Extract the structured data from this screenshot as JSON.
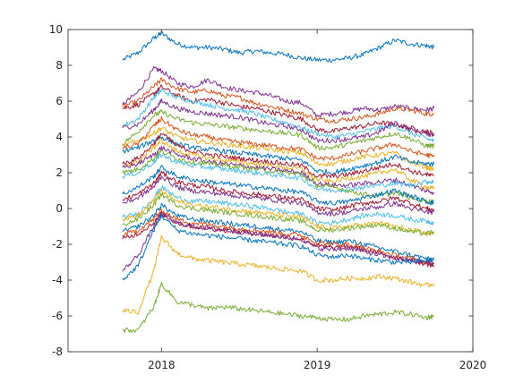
{
  "chart_data": {
    "type": "line",
    "title": "",
    "xlabel": "",
    "ylabel": "",
    "xlim": [
      2017.4,
      2020.0
    ],
    "ylim": [
      -8,
      10
    ],
    "grid": false,
    "legend": "none",
    "x_ticks": [
      2018,
      2019,
      2020
    ],
    "y_ticks": [
      -8,
      -6,
      -4,
      -2,
      0,
      2,
      4,
      6,
      8,
      10
    ],
    "x_tick_labels": [
      "2018",
      "2019",
      "2020"
    ],
    "y_tick_labels": [
      "-8",
      "-6",
      "-4",
      "-2",
      "0",
      "2",
      "4",
      "6",
      "8",
      "10"
    ],
    "x": [
      2017.75,
      2017.85,
      2017.95,
      2018.0,
      2018.1,
      2018.2,
      2018.3,
      2018.4,
      2018.5,
      2018.6,
      2018.7,
      2018.8,
      2018.9,
      2019.0,
      2019.1,
      2019.2,
      2019.3,
      2019.4,
      2019.5,
      2019.6,
      2019.7,
      2019.75
    ],
    "series": [
      {
        "color": "#0072BD",
        "values": [
          8.3,
          8.7,
          9.5,
          9.8,
          9.2,
          9.0,
          9.0,
          8.9,
          8.7,
          8.8,
          8.7,
          8.6,
          8.4,
          8.3,
          8.3,
          8.4,
          8.6,
          9.0,
          9.4,
          9.2,
          9.1,
          9.0
        ]
      },
      {
        "color": "#7E2F8E",
        "values": [
          5.8,
          6.5,
          7.8,
          7.7,
          7.0,
          6.8,
          7.2,
          6.8,
          6.6,
          6.5,
          6.3,
          6.0,
          5.9,
          5.2,
          5.3,
          5.4,
          5.6,
          5.5,
          5.7,
          5.6,
          5.5,
          5.6
        ]
      },
      {
        "color": "#D95319",
        "values": [
          5.7,
          6.0,
          6.8,
          7.2,
          6.7,
          6.5,
          6.6,
          6.3,
          6.2,
          5.9,
          5.7,
          5.5,
          5.3,
          5.0,
          4.9,
          5.0,
          5.1,
          5.3,
          5.6,
          5.5,
          5.3,
          5.3
        ]
      },
      {
        "color": "#A2142F",
        "values": [
          5.6,
          5.8,
          6.4,
          6.8,
          6.3,
          6.0,
          6.1,
          5.9,
          5.7,
          5.6,
          5.4,
          5.2,
          5.0,
          4.4,
          4.3,
          4.5,
          4.6,
          4.8,
          4.7,
          4.5,
          4.3,
          4.2
        ]
      },
      {
        "color": "#4DBEEE",
        "values": [
          4.6,
          5.0,
          6.2,
          6.6,
          6.2,
          6.0,
          5.8,
          5.6,
          5.5,
          5.3,
          5.0,
          4.8,
          4.5,
          4.2,
          4.0,
          4.1,
          4.3,
          4.5,
          4.6,
          4.2,
          3.9,
          3.8
        ]
      },
      {
        "color": "#7E2F8E",
        "values": [
          4.5,
          4.7,
          5.5,
          6.0,
          5.6,
          5.4,
          5.3,
          5.2,
          5.1,
          4.9,
          4.7,
          4.6,
          4.4,
          3.8,
          3.8,
          3.9,
          4.0,
          4.3,
          4.8,
          4.4,
          4.2,
          4.1
        ]
      },
      {
        "color": "#77AC30",
        "values": [
          3.6,
          4.3,
          5.2,
          5.4,
          5.0,
          4.8,
          4.7,
          4.6,
          4.5,
          4.4,
          4.3,
          4.2,
          4.1,
          3.4,
          3.4,
          3.6,
          3.8,
          4.0,
          4.2,
          3.9,
          3.5,
          3.5
        ]
      },
      {
        "color": "#EDB120",
        "values": [
          3.5,
          3.8,
          4.2,
          4.5,
          4.0,
          3.8,
          3.7,
          3.6,
          3.5,
          3.4,
          3.3,
          3.2,
          3.1,
          2.5,
          2.5,
          2.7,
          2.9,
          3.0,
          3.1,
          2.6,
          2.3,
          2.2
        ]
      },
      {
        "color": "#D95319",
        "values": [
          3.4,
          3.6,
          4.6,
          5.0,
          4.4,
          4.1,
          4.0,
          3.8,
          3.7,
          3.6,
          3.5,
          3.4,
          3.3,
          2.8,
          2.8,
          3.0,
          3.2,
          3.4,
          3.6,
          3.2,
          3.0,
          2.9
        ]
      },
      {
        "color": "#0072BD",
        "values": [
          3.2,
          3.4,
          3.8,
          4.0,
          3.6,
          3.4,
          3.3,
          3.2,
          3.1,
          3.0,
          2.9,
          2.8,
          2.7,
          2.1,
          2.0,
          2.2,
          2.4,
          2.6,
          2.9,
          2.6,
          2.5,
          2.5
        ]
      },
      {
        "color": "#A2142F",
        "values": [
          2.5,
          2.8,
          3.6,
          4.2,
          3.5,
          3.2,
          3.0,
          2.9,
          2.8,
          2.7,
          2.6,
          2.5,
          2.4,
          1.8,
          1.8,
          1.9,
          2.1,
          2.3,
          2.5,
          2.1,
          1.9,
          1.8
        ]
      },
      {
        "color": "#EDB120",
        "values": [
          2.4,
          2.6,
          3.4,
          3.8,
          3.2,
          3.0,
          2.8,
          2.7,
          2.6,
          2.5,
          2.4,
          2.3,
          2.2,
          1.6,
          1.5,
          1.7,
          1.8,
          2.0,
          2.2,
          1.6,
          1.2,
          1.1
        ]
      },
      {
        "color": "#7E2F8E",
        "values": [
          2.3,
          2.5,
          3.0,
          3.4,
          3.0,
          2.8,
          2.6,
          2.5,
          2.4,
          2.3,
          2.2,
          2.1,
          2.0,
          1.4,
          1.3,
          1.3,
          1.4,
          1.5,
          1.6,
          1.3,
          1.0,
          0.9
        ]
      },
      {
        "color": "#77AC30",
        "values": [
          2.0,
          2.2,
          2.8,
          3.2,
          2.8,
          2.6,
          2.5,
          2.4,
          2.3,
          2.2,
          2.1,
          2.0,
          1.9,
          1.3,
          1.2,
          1.0,
          0.8,
          0.7,
          0.9,
          0.6,
          0.4,
          0.4
        ]
      },
      {
        "color": "#4DBEEE",
        "values": [
          1.8,
          2.0,
          2.6,
          3.0,
          2.6,
          2.4,
          2.3,
          2.2,
          2.1,
          2.0,
          1.9,
          1.8,
          1.7,
          1.1,
          1.0,
          1.1,
          1.2,
          1.3,
          1.4,
          1.3,
          1.5,
          1.5
        ]
      },
      {
        "color": "#0072BD",
        "values": [
          0.8,
          1.2,
          1.8,
          2.3,
          1.8,
          1.6,
          1.5,
          1.4,
          1.3,
          1.2,
          1.1,
          1.0,
          0.9,
          0.4,
          0.3,
          0.4,
          0.6,
          0.8,
          1.0,
          0.7,
          0.4,
          0.3
        ]
      },
      {
        "color": "#A2142F",
        "values": [
          0.5,
          0.8,
          1.4,
          2.0,
          1.5,
          1.3,
          1.2,
          1.0,
          0.9,
          0.8,
          0.7,
          0.6,
          0.5,
          0.0,
          -0.1,
          0.1,
          0.3,
          0.4,
          0.6,
          0.3,
          0.0,
          -0.1
        ]
      },
      {
        "color": "#7E2F8E",
        "values": [
          0.3,
          0.6,
          1.2,
          1.8,
          1.2,
          1.0,
          0.9,
          0.8,
          0.7,
          0.6,
          0.5,
          0.4,
          0.3,
          -0.2,
          -0.3,
          -0.2,
          0.0,
          0.1,
          0.3,
          0.0,
          -0.2,
          -0.2
        ]
      },
      {
        "color": "#4DBEEE",
        "values": [
          -0.5,
          -0.3,
          0.6,
          1.2,
          0.6,
          0.4,
          0.4,
          0.3,
          0.2,
          0.1,
          0.0,
          -0.2,
          -0.3,
          -0.8,
          -0.8,
          -0.6,
          -0.4,
          -0.3,
          -0.4,
          -0.6,
          -0.7,
          -0.8
        ]
      },
      {
        "color": "#EDB120",
        "values": [
          -0.6,
          -0.4,
          0.4,
          1.0,
          0.4,
          0.2,
          0.1,
          0.0,
          -0.1,
          -0.2,
          -0.3,
          -0.4,
          -0.5,
          -1.0,
          -1.1,
          -1.0,
          -0.9,
          -0.8,
          -1.0,
          -1.2,
          -1.4,
          -1.4
        ]
      },
      {
        "color": "#77AC30",
        "values": [
          -0.9,
          -0.6,
          0.2,
          0.8,
          0.2,
          0.0,
          -0.1,
          -0.2,
          -0.3,
          -0.4,
          -0.5,
          -0.6,
          -0.7,
          -1.2,
          -1.2,
          -1.1,
          -1.0,
          -0.9,
          -1.1,
          -1.3,
          -1.4,
          -1.3
        ]
      },
      {
        "color": "#0072BD",
        "values": [
          -1.3,
          -1.0,
          -0.4,
          0.2,
          -0.4,
          -0.6,
          -0.7,
          -0.8,
          -0.9,
          -1.0,
          -1.1,
          -1.2,
          -1.3,
          -1.8,
          -1.9,
          -1.8,
          -2.0,
          -2.2,
          -2.4,
          -2.6,
          -2.8,
          -2.9
        ]
      },
      {
        "color": "#D95319",
        "values": [
          -1.5,
          -1.2,
          -0.6,
          -0.1,
          -0.6,
          -0.8,
          -0.9,
          -1.0,
          -1.1,
          -1.2,
          -1.3,
          -1.4,
          -1.5,
          -1.9,
          -2.0,
          -2.0,
          -2.2,
          -2.4,
          -2.6,
          -2.8,
          -3.0,
          -3.1
        ]
      },
      {
        "color": "#A2142F",
        "values": [
          -1.7,
          -1.4,
          -0.8,
          -0.3,
          -0.8,
          -1.0,
          -1.1,
          -1.2,
          -1.3,
          -1.4,
          -1.5,
          -1.6,
          -1.7,
          -2.1,
          -2.2,
          -2.1,
          -2.3,
          -2.5,
          -2.7,
          -2.9,
          -3.1,
          -3.2
        ]
      },
      {
        "color": "#7E2F8E",
        "values": [
          -3.5,
          -2.6,
          -1.0,
          -0.3,
          -0.8,
          -1.0,
          -1.1,
          -1.2,
          -1.3,
          -1.4,
          -1.5,
          -1.6,
          -1.7,
          -2.2,
          -2.3,
          -2.2,
          -2.4,
          -2.6,
          -2.8,
          -2.9,
          -3.0,
          -3.1
        ]
      },
      {
        "color": "#0072BD",
        "values": [
          -4.0,
          -3.2,
          -1.2,
          -0.4,
          -1.2,
          -1.4,
          -1.5,
          -1.6,
          -1.7,
          -1.8,
          -1.9,
          -2.0,
          -2.1,
          -2.6,
          -2.7,
          -2.6,
          -2.8,
          -2.9,
          -3.0,
          -3.0,
          -2.9,
          -2.8
        ]
      },
      {
        "color": "#EDB120",
        "values": [
          -5.7,
          -5.8,
          -3.5,
          -1.6,
          -2.5,
          -2.8,
          -2.9,
          -3.0,
          -3.1,
          -3.2,
          -3.3,
          -3.4,
          -3.5,
          -4.0,
          -4.0,
          -3.9,
          -3.9,
          -3.8,
          -3.9,
          -4.1,
          -4.3,
          -4.2
        ]
      },
      {
        "color": "#77AC30",
        "values": [
          -6.8,
          -6.8,
          -5.5,
          -4.2,
          -5.2,
          -5.4,
          -5.6,
          -5.5,
          -5.6,
          -5.7,
          -5.8,
          -5.9,
          -6.0,
          -6.1,
          -6.2,
          -6.2,
          -6.0,
          -5.9,
          -5.8,
          -5.9,
          -6.1,
          -6.0
        ]
      }
    ]
  }
}
